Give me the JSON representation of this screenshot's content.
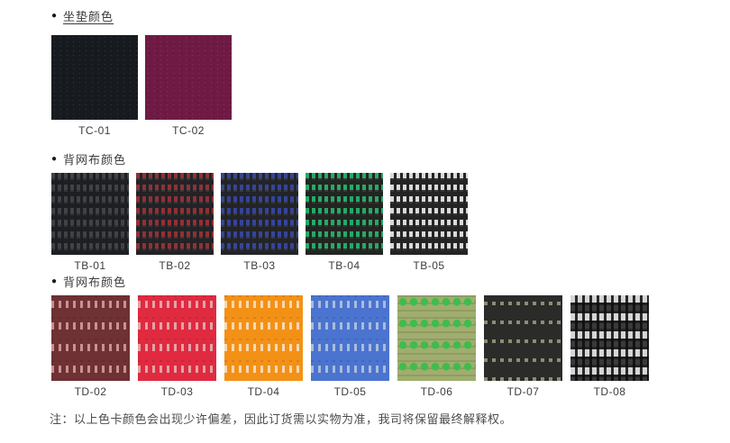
{
  "page": {
    "background": "#ffffff"
  },
  "sections": [
    {
      "id": "cushion-colors",
      "bullet": "●",
      "title": "坐垫颜色",
      "swatches": [
        {
          "label": "TC-01",
          "texture": "solid",
          "base": "#171b20"
        },
        {
          "label": "TC-02",
          "texture": "solid",
          "base": "#6f1a44"
        }
      ]
    },
    {
      "id": "back-mesh-colors-1",
      "bullet": "●",
      "title": "背网布颜色",
      "swatches": [
        {
          "label": "TB-01",
          "texture": "mesh",
          "base": "#1e1f22",
          "accent": "#414247"
        },
        {
          "label": "TB-02",
          "texture": "mesh",
          "base": "#232326",
          "accent": "#8f3136"
        },
        {
          "label": "TB-03",
          "texture": "mesh",
          "base": "#232428",
          "accent": "#35449a"
        },
        {
          "label": "TB-04",
          "texture": "mesh",
          "base": "#222521",
          "accent": "#27a868"
        },
        {
          "label": "TB-05",
          "texture": "mesh",
          "base": "#242424",
          "accent": "#d9d9d9"
        }
      ]
    },
    {
      "id": "back-mesh-colors-2",
      "bullet": "●",
      "title": "背网布颜色",
      "swatches": [
        {
          "label": "TD-02",
          "texture": "dash",
          "base": "#6f3133",
          "accent": "#c89193"
        },
        {
          "label": "TD-03",
          "texture": "dash",
          "base": "#e02a40",
          "accent": "#e3a4a8"
        },
        {
          "label": "TD-04",
          "texture": "dash",
          "base": "#f39117",
          "accent": "#f7d9b4"
        },
        {
          "label": "TD-05",
          "texture": "dash",
          "base": "#4a74cf",
          "accent": "#aabbdd"
        },
        {
          "label": "TD-06",
          "texture": "dots",
          "base": "#9fae6e",
          "accent": "#3fbc4d"
        },
        {
          "label": "TD-07",
          "texture": "dash-dense",
          "base": "#2b2b29",
          "accent": "#8d8c74"
        },
        {
          "label": "TD-08",
          "texture": "stripe-bold",
          "base": "#3e3e3e",
          "accent": "#d6d6d6"
        }
      ]
    }
  ],
  "footer": {
    "note": "注：以上色卡颜色会出现少许偏差，因此订货需以实物为准，我司将保留最终解释权。"
  }
}
